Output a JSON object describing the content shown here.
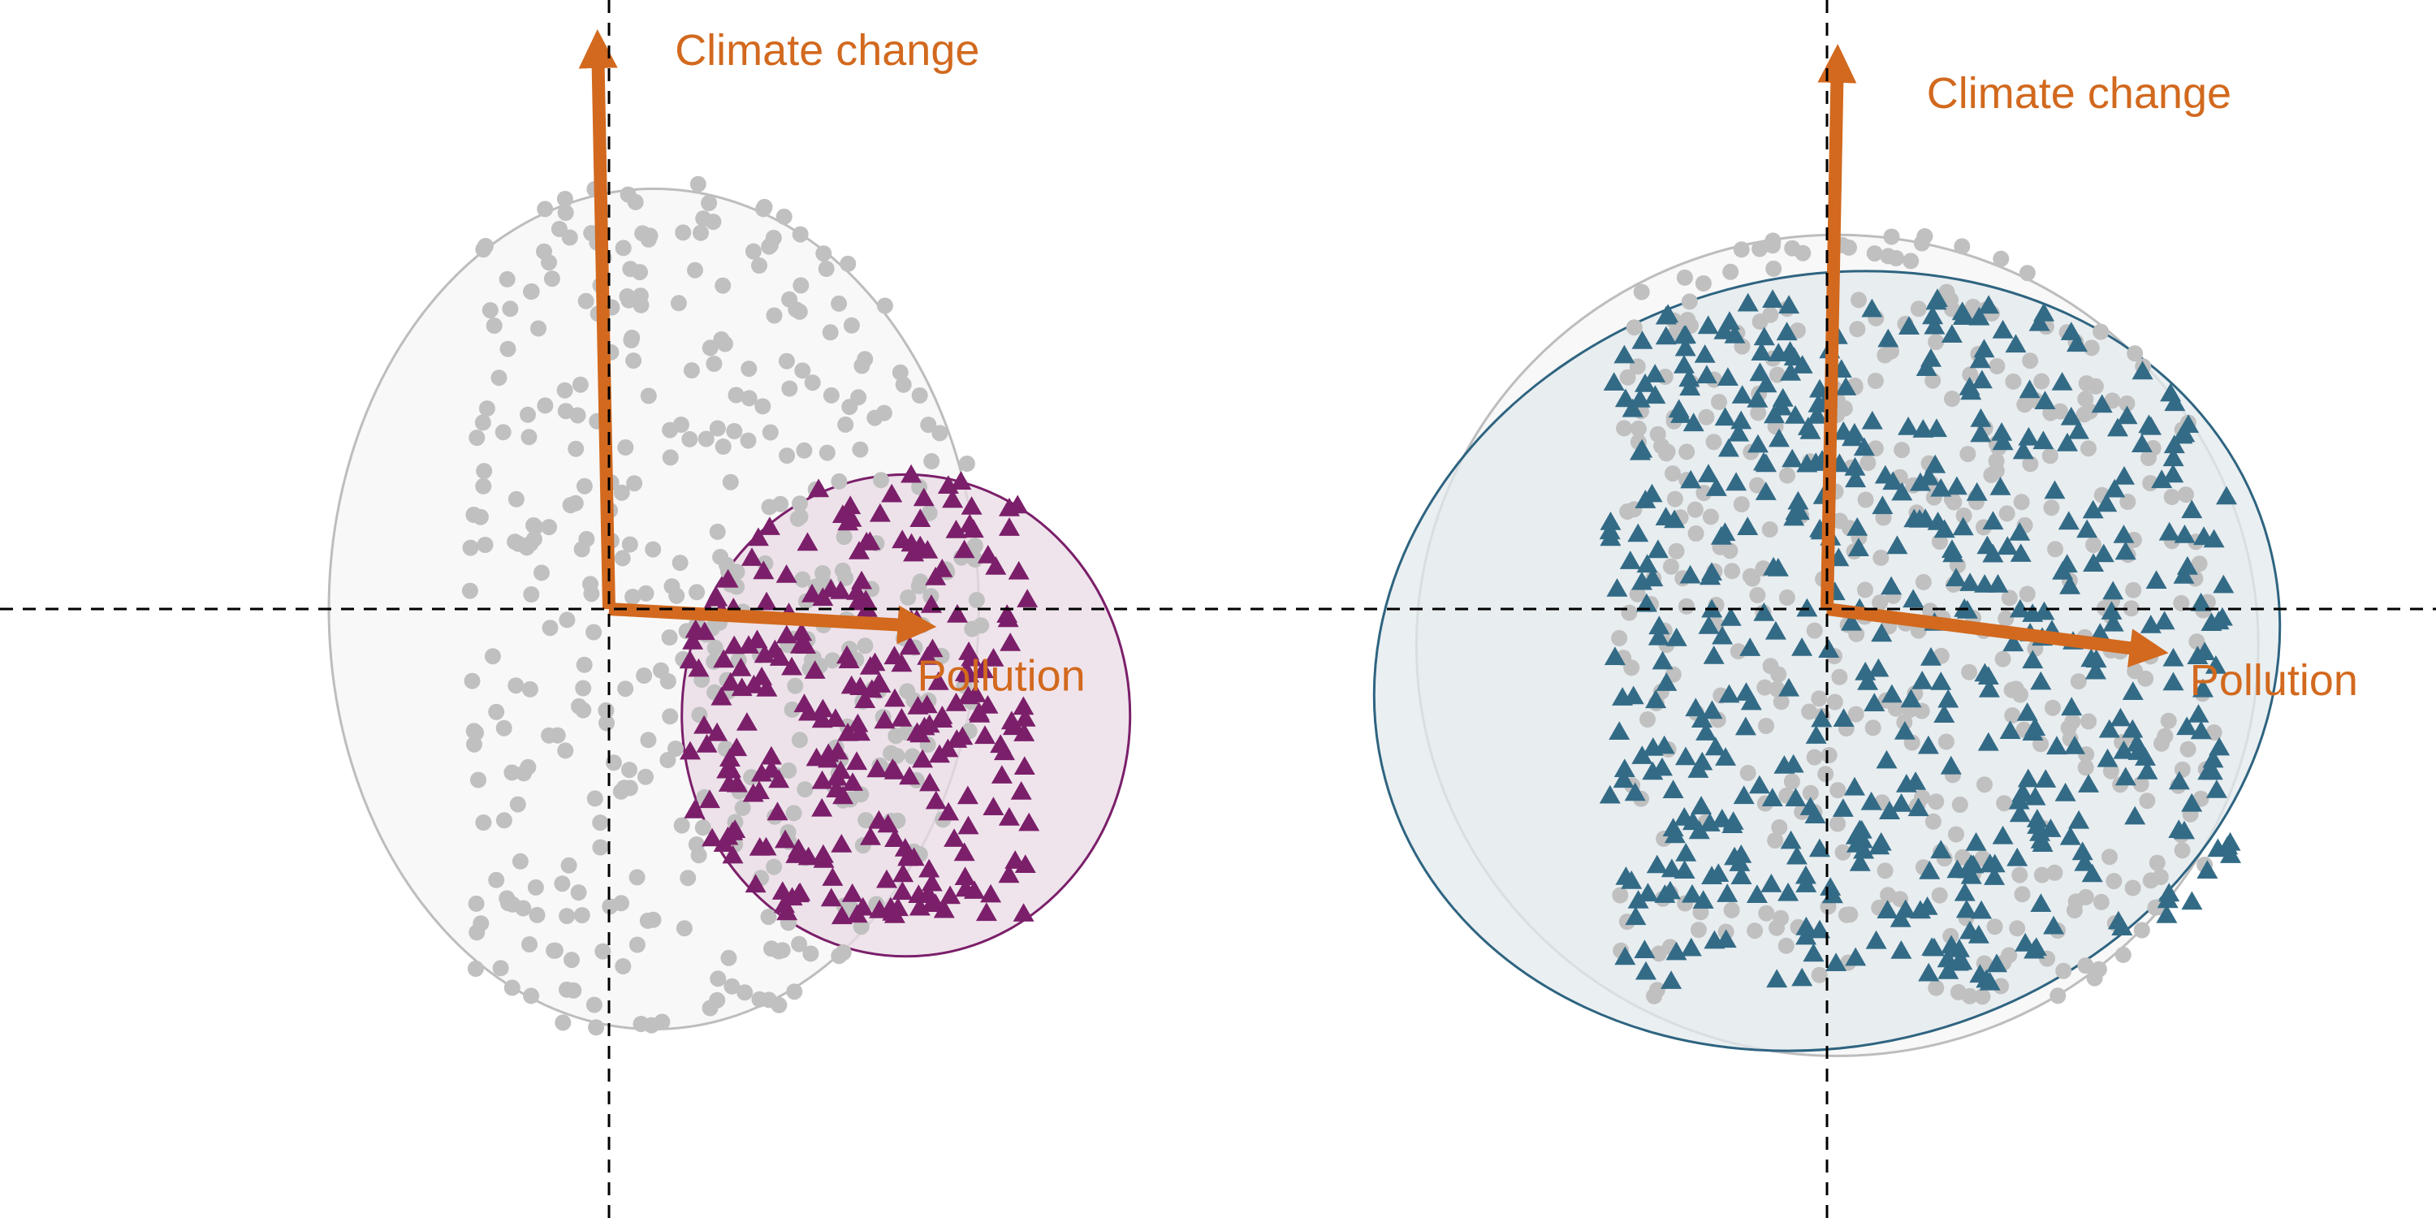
{
  "colors": {
    "background_points": "#C0C0C0",
    "background_hull_fill": "#F7F7F7",
    "background_hull_stroke": "#BDBDBD",
    "arrow": "#D2691E",
    "reference_line": "#000000"
  },
  "chart_data": [
    {
      "type": "scatter",
      "description_panel": "left",
      "reference_lines": {
        "x": 0,
        "y": 0,
        "style": "dashed"
      },
      "loadings": [
        {
          "label": "Climate change",
          "x": -0.02,
          "y": 1.0
        },
        {
          "label": "Pollution",
          "x": 0.55,
          "y": -0.03
        }
      ],
      "series": [
        {
          "marker": "circle",
          "color": "#C0C0C0",
          "n_points": 420,
          "x_range": [
            -0.25,
            0.75
          ],
          "y_range": [
            -0.75,
            0.9
          ],
          "ellipse": {
            "cx": 0.08,
            "cy": 0.0,
            "rx": 0.58,
            "ry": 0.75,
            "fill": "#F7F7F7",
            "stroke": "#BDBDBD"
          }
        },
        {
          "marker": "triangle",
          "color": "#7B1F6A",
          "n_points": 260,
          "x_range": [
            0.1,
            0.75
          ],
          "y_range": [
            -0.55,
            0.45
          ],
          "ellipse": {
            "cx": 0.53,
            "cy": -0.19,
            "rx": 0.4,
            "ry": 0.43,
            "fill": "#EADBE6",
            "stroke": "#7B1F6A"
          }
        }
      ]
    },
    {
      "type": "scatter",
      "description_panel": "right",
      "reference_lines": {
        "x": 0,
        "y": 0,
        "style": "dashed"
      },
      "loadings": [
        {
          "label": "Climate change",
          "x": 0.02,
          "y": 1.05
        },
        {
          "label": "Pollution",
          "x": 0.62,
          "y": -0.08
        }
      ],
      "series": [
        {
          "marker": "circle",
          "color": "#C0C0C0",
          "n_points": 420,
          "x_range": [
            -0.4,
            0.75
          ],
          "y_range": [
            -0.75,
            0.75
          ],
          "ellipse": {
            "cx": 0.02,
            "cy": -0.07,
            "rx": 0.81,
            "ry": 0.79,
            "fill": "#F7F7F7",
            "stroke": "#BDBDBD"
          }
        },
        {
          "marker": "triangle",
          "color": "#336B86",
          "n_points": 520,
          "x_range": [
            -0.42,
            0.78
          ],
          "y_range": [
            -0.72,
            0.6
          ],
          "ellipse": {
            "cx": 0.0,
            "cy": -0.1,
            "rx": 0.88,
            "ry": 0.74,
            "rotate": -15,
            "fill": "#E3EAEE",
            "stroke": "#2E6480"
          }
        }
      ]
    }
  ]
}
